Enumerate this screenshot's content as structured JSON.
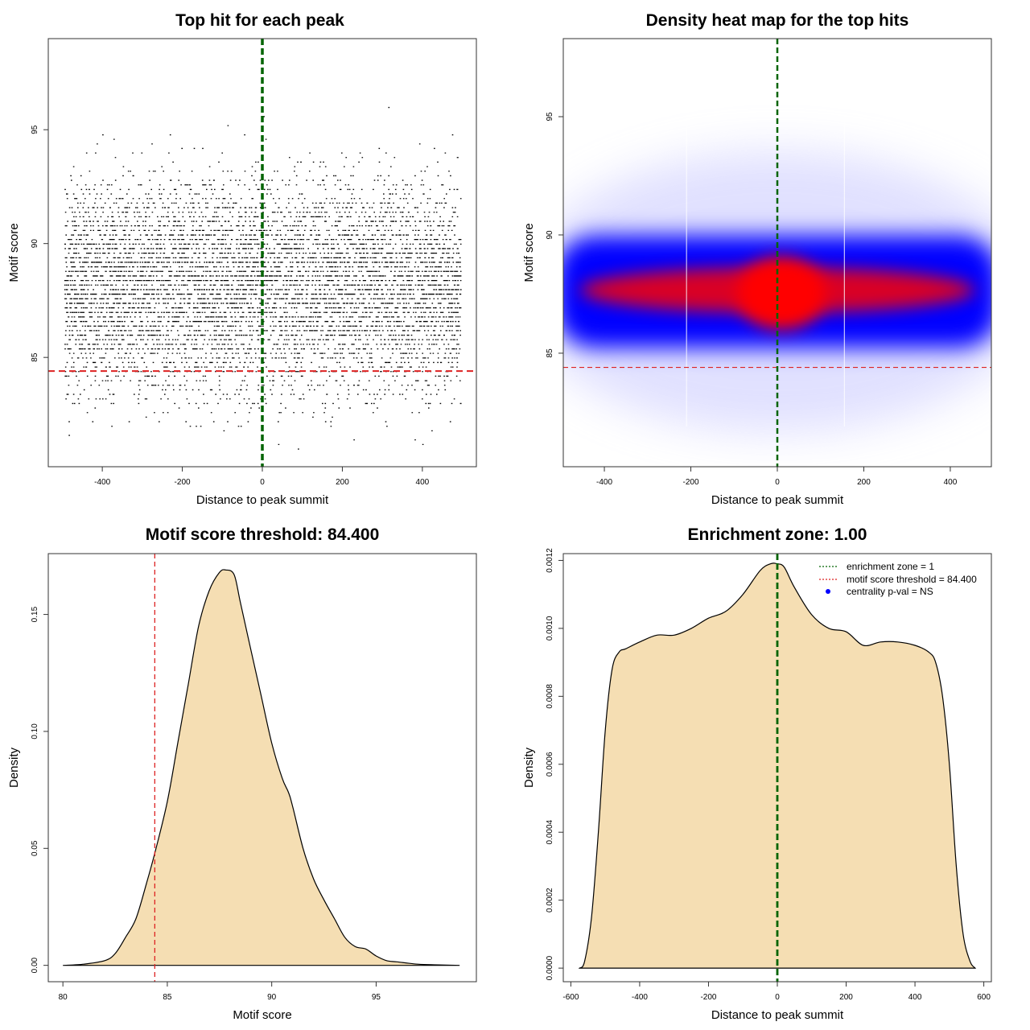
{
  "colors": {
    "points": "#000000",
    "threshold_line": "#dd2222",
    "center_line": "#006400",
    "fill": "#f5deb3",
    "heat_low": "#0000ff",
    "heat_high": "#ff0000",
    "legend_point": "#0000ff"
  },
  "chart_data": [
    {
      "id": "scatter",
      "type": "scatter",
      "title": "Top hit for each peak",
      "xlabel": "Distance to peak summit",
      "ylabel": "Motif score",
      "xlim": [
        -535,
        535
      ],
      "ylim": [
        80.2,
        99.0
      ],
      "xticks": [
        -400,
        -200,
        0,
        200,
        400
      ],
      "xtick_labels": [
        "-400",
        "-200",
        "0",
        "200",
        "400"
      ],
      "yticks": [
        85,
        90,
        95
      ],
      "ytick_labels": [
        "85",
        "90",
        "95"
      ],
      "x_range": [
        -495,
        495
      ],
      "score_distribution": {
        "mean": 88.2,
        "sd": 2.3,
        "min": 81.0,
        "max": 98.0
      },
      "hlines": [
        {
          "y": 84.4,
          "style": "dashed",
          "color": "red"
        }
      ],
      "vlines": [
        {
          "x": 0,
          "style": "dashed",
          "color": "darkgreen"
        }
      ]
    },
    {
      "id": "heatmap",
      "type": "heatmap",
      "title": "Density heat map for the top hits",
      "xlabel": "Distance to peak summit",
      "ylabel": "Motif score",
      "xlim": [
        -495,
        495
      ],
      "ylim": [
        80.2,
        98.3
      ],
      "xticks": [
        -400,
        -200,
        0,
        200,
        400
      ],
      "xtick_labels": [
        "-400",
        "-200",
        "0",
        "200",
        "400"
      ],
      "yticks": [
        85,
        90,
        95
      ],
      "ytick_labels": [
        "85",
        "90",
        "95"
      ],
      "density_peak": {
        "x": 0,
        "y": 87.6
      },
      "hlines": [
        {
          "y": 84.4,
          "style": "dashed",
          "color": "red"
        }
      ],
      "vlines": [
        {
          "x": 0,
          "style": "dashed",
          "color": "darkgreen"
        }
      ]
    },
    {
      "id": "score_density",
      "type": "area",
      "title": "Motif score threshold: 84.400",
      "xlabel": "Motif score",
      "ylabel": "Density",
      "xlim": [
        79.3,
        99.8
      ],
      "ylim": [
        -0.007,
        0.176
      ],
      "xticks": [
        80,
        85,
        90,
        95
      ],
      "xtick_labels": [
        "80",
        "85",
        "90",
        "95"
      ],
      "yticks": [
        0.0,
        0.05,
        0.1,
        0.15
      ],
      "ytick_labels": [
        "0.00",
        "0.05",
        "0.10",
        "0.15"
      ],
      "x": [
        80.0,
        81.0,
        82.0,
        82.5,
        83.0,
        83.5,
        84.0,
        84.4,
        85.0,
        85.5,
        86.0,
        86.5,
        87.0,
        87.5,
        87.8,
        88.2,
        88.5,
        89.0,
        89.5,
        90.0,
        90.5,
        90.8,
        91.0,
        91.5,
        92.0,
        92.5,
        93.0,
        93.5,
        94.0,
        94.5,
        95.0,
        95.5,
        96.0,
        97.0,
        98.0,
        99.0
      ],
      "y": [
        0.0,
        0.0005,
        0.002,
        0.005,
        0.012,
        0.02,
        0.035,
        0.048,
        0.07,
        0.095,
        0.12,
        0.145,
        0.16,
        0.168,
        0.169,
        0.167,
        0.155,
        0.135,
        0.115,
        0.095,
        0.08,
        0.074,
        0.068,
        0.05,
        0.037,
        0.028,
        0.02,
        0.012,
        0.008,
        0.007,
        0.004,
        0.002,
        0.0015,
        0.0005,
        0.0002,
        0.0
      ],
      "vlines": [
        {
          "x": 84.4,
          "style": "dashed",
          "color": "red"
        }
      ]
    },
    {
      "id": "distance_density",
      "type": "area",
      "title": "Enrichment zone: 1.00",
      "xlabel": "Distance to peak summit",
      "ylabel": "Density",
      "xlim": [
        -622,
        622
      ],
      "ylim": [
        -4e-05,
        0.00122
      ],
      "xticks": [
        -600,
        -400,
        -200,
        0,
        200,
        400,
        600
      ],
      "xtick_labels": [
        "-600",
        "-400",
        "-200",
        "0",
        "200",
        "400",
        "600"
      ],
      "yticks": [
        0.0,
        0.0002,
        0.0004,
        0.0006,
        0.0008,
        0.001,
        0.0012
      ],
      "ytick_labels": [
        "0.0000",
        "0.0002",
        "0.0004",
        "0.0006",
        "0.0008",
        "0.0010",
        "0.0012"
      ],
      "x": [
        -575,
        -560,
        -540,
        -520,
        -500,
        -480,
        -460,
        -440,
        -400,
        -350,
        -300,
        -250,
        -200,
        -150,
        -100,
        -50,
        -20,
        0,
        20,
        50,
        100,
        150,
        200,
        250,
        300,
        350,
        400,
        440,
        460,
        480,
        500,
        520,
        540,
        560,
        575
      ],
      "y": [
        0.0,
        2e-05,
        0.00015,
        0.0004,
        0.0007,
        0.00088,
        0.00093,
        0.00094,
        0.00096,
        0.00098,
        0.00098,
        0.001,
        0.00103,
        0.00105,
        0.0011,
        0.00117,
        0.00119,
        0.00119,
        0.00118,
        0.00112,
        0.00104,
        0.001,
        0.00099,
        0.00095,
        0.00096,
        0.00096,
        0.00095,
        0.00093,
        0.0009,
        0.0008,
        0.0006,
        0.0003,
        0.0001,
        2e-05,
        0.0
      ],
      "vlines": [
        {
          "x": 0,
          "style": "dashed",
          "color": "darkgreen"
        }
      ],
      "legend": {
        "placement": "top-right",
        "entries": [
          {
            "label": "enrichment zone = 1",
            "symbol": "dotted-line",
            "color": "#006400"
          },
          {
            "label": "motif score threshold = 84.400",
            "symbol": "dotted-line",
            "color": "#dd2222"
          },
          {
            "label": "centrality p-val = NS",
            "symbol": "point",
            "color": "#0000ff"
          }
        ]
      }
    }
  ]
}
